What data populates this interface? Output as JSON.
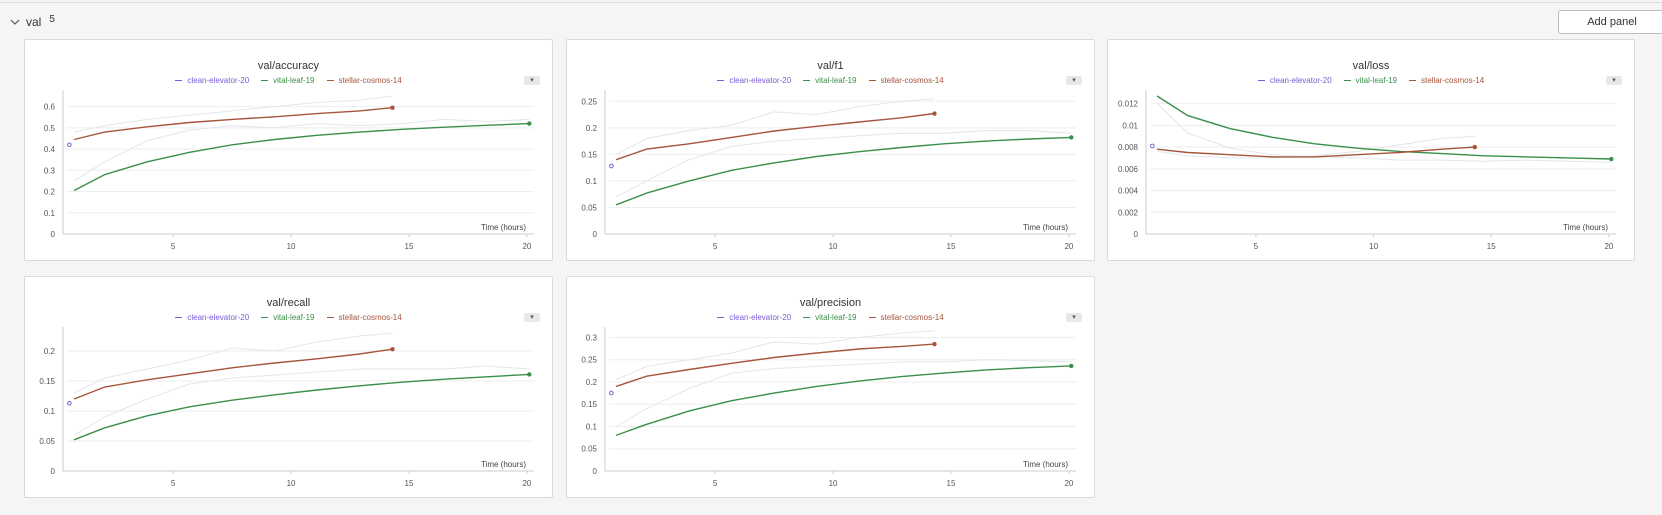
{
  "section": {
    "title": "val",
    "count": "5",
    "add_panel_label": "Add panel"
  },
  "colors": {
    "clean-elevator-20": "#7b5cd6",
    "vital-leaf-19": "#3a8f4a",
    "stellar-cosmos-14": "#a6553a",
    "smoothed-raw": "#e3e6e8",
    "grid": "#eeeeee",
    "axis": "#cccccc"
  },
  "legend": [
    "clean-elevator-20",
    "vital-leaf-19",
    "stellar-cosmos-14"
  ],
  "chart_data": [
    {
      "type": "line",
      "title": "val/accuracy",
      "xlabel": "Time (hours)",
      "ylabel": "",
      "xlim": [
        0.5,
        20.3
      ],
      "ylim": [
        0,
        0.65
      ],
      "xticks": [
        5,
        10,
        15,
        20
      ],
      "xtick_labels": [
        "5",
        "10",
        "15",
        "20"
      ],
      "yticks": [
        0,
        0.1,
        0.2,
        0.3,
        0.4,
        0.5,
        0.6
      ],
      "ytick_labels": [
        "0",
        "0.1",
        "0.2",
        "0.3",
        "0.4",
        "0.5",
        "0.6"
      ],
      "grid": true,
      "series": [
        {
          "name": "clean-elevator-20",
          "x": [
            0.6
          ],
          "y": [
            0.42
          ],
          "raw": false
        },
        {
          "name": "vital-leaf-19",
          "x": [
            0.8,
            2.1,
            3.9,
            5.7,
            7.5,
            9.3,
            11.1,
            12.9,
            14.7,
            16.5,
            18.3,
            20.1
          ],
          "y": [
            0.205,
            0.28,
            0.34,
            0.385,
            0.42,
            0.445,
            0.465,
            0.48,
            0.493,
            0.503,
            0.512,
            0.52
          ]
        },
        {
          "name": "stellar-cosmos-14",
          "x": [
            0.8,
            2.1,
            3.9,
            5.7,
            7.5,
            9.3,
            11.1,
            12.9,
            14.3
          ],
          "y": [
            0.445,
            0.48,
            0.505,
            0.525,
            0.54,
            0.552,
            0.567,
            0.58,
            0.595
          ]
        }
      ],
      "raw": [
        {
          "name": "vital-leaf-19-raw",
          "x": [
            0.8,
            2.1,
            3.9,
            5.7,
            7.5,
            9.3,
            11.1,
            12.9,
            14.7,
            16.5,
            18.3,
            20.1
          ],
          "y": [
            0.25,
            0.34,
            0.44,
            0.49,
            0.51,
            0.5,
            0.52,
            0.51,
            0.52,
            0.54,
            0.53,
            0.54
          ]
        },
        {
          "name": "stellar-cosmos-14-raw",
          "x": [
            0.8,
            2.1,
            3.9,
            5.7,
            7.5,
            9.3,
            11.1,
            12.9,
            14.3
          ],
          "y": [
            0.48,
            0.51,
            0.54,
            0.56,
            0.58,
            0.6,
            0.62,
            0.63,
            0.65
          ]
        }
      ]
    },
    {
      "type": "line",
      "title": "val/f1",
      "xlabel": "Time (hours)",
      "ylabel": "",
      "xlim": [
        0.5,
        20.3
      ],
      "ylim": [
        0,
        0.26
      ],
      "xticks": [
        5,
        10,
        15,
        20
      ],
      "xtick_labels": [
        "5",
        "10",
        "15",
        "20"
      ],
      "yticks": [
        0,
        0.05,
        0.1,
        0.15,
        0.2,
        0.25
      ],
      "ytick_labels": [
        "0",
        "0.05",
        "0.1",
        "0.15",
        "0.2",
        "0.25"
      ],
      "grid": true,
      "series": [
        {
          "name": "clean-elevator-20",
          "x": [
            0.6
          ],
          "y": [
            0.128
          ],
          "raw": false
        },
        {
          "name": "vital-leaf-19",
          "x": [
            0.8,
            2.1,
            3.9,
            5.7,
            7.5,
            9.3,
            11.1,
            12.9,
            14.7,
            16.5,
            18.3,
            20.1
          ],
          "y": [
            0.055,
            0.077,
            0.1,
            0.12,
            0.134,
            0.146,
            0.155,
            0.163,
            0.17,
            0.175,
            0.179,
            0.182
          ]
        },
        {
          "name": "stellar-cosmos-14",
          "x": [
            0.8,
            2.1,
            3.9,
            5.7,
            7.5,
            9.3,
            11.1,
            12.9,
            14.3
          ],
          "y": [
            0.14,
            0.16,
            0.17,
            0.182,
            0.194,
            0.203,
            0.211,
            0.219,
            0.227
          ]
        }
      ],
      "raw": [
        {
          "name": "vital-leaf-19-raw",
          "x": [
            0.8,
            2.1,
            3.9,
            5.7,
            7.5,
            9.3,
            11.1,
            12.9,
            14.7,
            16.5,
            18.3,
            20.1
          ],
          "y": [
            0.07,
            0.1,
            0.14,
            0.165,
            0.175,
            0.18,
            0.185,
            0.19,
            0.19,
            0.195,
            0.195,
            0.19
          ]
        },
        {
          "name": "stellar-cosmos-14-raw",
          "x": [
            0.8,
            2.1,
            3.9,
            5.7,
            7.5,
            9.3,
            11.1,
            12.9,
            14.3
          ],
          "y": [
            0.15,
            0.18,
            0.195,
            0.205,
            0.23,
            0.225,
            0.24,
            0.25,
            0.255
          ]
        }
      ]
    },
    {
      "type": "line",
      "title": "val/loss",
      "xlabel": "Time (hours)",
      "ylabel": "",
      "xlim": [
        0.5,
        20.3
      ],
      "ylim": [
        0,
        0.0127
      ],
      "xticks": [
        5,
        10,
        15,
        20
      ],
      "xtick_labels": [
        "5",
        "10",
        "15",
        "20"
      ],
      "yticks": [
        0,
        0.002,
        0.004,
        0.006,
        0.008,
        0.01,
        0.012
      ],
      "ytick_labels": [
        "0",
        "0.002",
        "0.004",
        "0.006",
        "0.008",
        "0.01",
        "0.012"
      ],
      "grid": true,
      "series": [
        {
          "name": "clean-elevator-20",
          "x": [
            0.6
          ],
          "y": [
            0.0081
          ],
          "raw": false
        },
        {
          "name": "vital-leaf-19",
          "x": [
            0.8,
            2.1,
            3.9,
            5.7,
            7.5,
            9.3,
            11.1,
            12.9,
            14.7,
            16.5,
            18.3,
            20.1
          ],
          "y": [
            0.0127,
            0.0109,
            0.0097,
            0.0089,
            0.0083,
            0.0079,
            0.0076,
            0.0074,
            0.0072,
            0.0071,
            0.007,
            0.0069
          ]
        },
        {
          "name": "stellar-cosmos-14",
          "x": [
            0.8,
            2.1,
            3.9,
            5.7,
            7.5,
            9.3,
            11.1,
            12.9,
            14.3
          ],
          "y": [
            0.0078,
            0.0075,
            0.0073,
            0.0071,
            0.0071,
            0.0073,
            0.0075,
            0.0078,
            0.008
          ]
        }
      ],
      "raw": [
        {
          "name": "vital-leaf-19-raw",
          "x": [
            0.8,
            2.1,
            3.9,
            5.7,
            7.5,
            9.3,
            11.1,
            12.9,
            14.7,
            16.5,
            18.3,
            20.1
          ],
          "y": [
            0.012,
            0.0093,
            0.0079,
            0.0073,
            0.0071,
            0.007,
            0.0068,
            0.0068,
            0.0067,
            0.0068,
            0.0067,
            0.0066
          ]
        },
        {
          "name": "stellar-cosmos-14-raw",
          "x": [
            0.8,
            2.1,
            3.9,
            5.7,
            7.5,
            9.3,
            11.1,
            12.9,
            14.3
          ],
          "y": [
            0.0076,
            0.0072,
            0.007,
            0.007,
            0.0072,
            0.0076,
            0.0082,
            0.0088,
            0.009
          ]
        }
      ]
    },
    {
      "type": "line",
      "title": "val/recall",
      "xlabel": "Time (hours)",
      "ylabel": "",
      "xlim": [
        0.5,
        20.3
      ],
      "ylim": [
        0,
        0.23
      ],
      "xticks": [
        5,
        10,
        15,
        20
      ],
      "xtick_labels": [
        "5",
        "10",
        "15",
        "20"
      ],
      "yticks": [
        0,
        0.05,
        0.1,
        0.15,
        0.2
      ],
      "ytick_labels": [
        "0",
        "0.05",
        "0.1",
        "0.15",
        "0.2"
      ],
      "grid": true,
      "series": [
        {
          "name": "clean-elevator-20",
          "x": [
            0.6
          ],
          "y": [
            0.113
          ],
          "raw": false
        },
        {
          "name": "vital-leaf-19",
          "x": [
            0.8,
            2.1,
            3.9,
            5.7,
            7.5,
            9.3,
            11.1,
            12.9,
            14.7,
            16.5,
            18.3,
            20.1
          ],
          "y": [
            0.052,
            0.072,
            0.092,
            0.107,
            0.118,
            0.127,
            0.135,
            0.142,
            0.148,
            0.153,
            0.157,
            0.161
          ]
        },
        {
          "name": "stellar-cosmos-14",
          "x": [
            0.8,
            2.1,
            3.9,
            5.7,
            7.5,
            9.3,
            11.1,
            12.9,
            14.3
          ],
          "y": [
            0.12,
            0.14,
            0.152,
            0.162,
            0.172,
            0.18,
            0.187,
            0.195,
            0.203
          ]
        }
      ],
      "raw": [
        {
          "name": "vital-leaf-19-raw",
          "x": [
            0.8,
            2.1,
            3.9,
            5.7,
            7.5,
            9.3,
            11.1,
            12.9,
            14.7,
            16.5,
            18.3,
            20.1
          ],
          "y": [
            0.06,
            0.09,
            0.12,
            0.145,
            0.155,
            0.16,
            0.165,
            0.17,
            0.17,
            0.17,
            0.175,
            0.17
          ]
        },
        {
          "name": "stellar-cosmos-14-raw",
          "x": [
            0.8,
            2.1,
            3.9,
            5.7,
            7.5,
            9.3,
            11.1,
            12.9,
            14.3
          ],
          "y": [
            0.13,
            0.155,
            0.17,
            0.185,
            0.205,
            0.2,
            0.215,
            0.225,
            0.23
          ]
        }
      ]
    },
    {
      "type": "line",
      "title": "val/precision",
      "xlabel": "Time (hours)",
      "ylabel": "",
      "xlim": [
        0.5,
        20.3
      ],
      "ylim": [
        0,
        0.31
      ],
      "xticks": [
        5,
        10,
        15,
        20
      ],
      "xtick_labels": [
        "5",
        "10",
        "15",
        "20"
      ],
      "yticks": [
        0,
        0.05,
        0.1,
        0.15,
        0.2,
        0.25,
        0.3
      ],
      "ytick_labels": [
        "0",
        "0.05",
        "0.1",
        "0.15",
        "0.2",
        "0.25",
        "0.3"
      ],
      "grid": true,
      "series": [
        {
          "name": "clean-elevator-20",
          "x": [
            0.6
          ],
          "y": [
            0.175
          ],
          "raw": false
        },
        {
          "name": "vital-leaf-19",
          "x": [
            0.8,
            2.1,
            3.9,
            5.7,
            7.5,
            9.3,
            11.1,
            12.9,
            14.7,
            16.5,
            18.3,
            20.1
          ],
          "y": [
            0.08,
            0.105,
            0.135,
            0.158,
            0.175,
            0.19,
            0.202,
            0.212,
            0.22,
            0.227,
            0.232,
            0.236
          ]
        },
        {
          "name": "stellar-cosmos-14",
          "x": [
            0.8,
            2.1,
            3.9,
            5.7,
            7.5,
            9.3,
            11.1,
            12.9,
            14.3
          ],
          "y": [
            0.19,
            0.213,
            0.228,
            0.242,
            0.255,
            0.265,
            0.274,
            0.28,
            0.285
          ]
        }
      ],
      "raw": [
        {
          "name": "vital-leaf-19-raw",
          "x": [
            0.8,
            2.1,
            3.9,
            5.7,
            7.5,
            9.3,
            11.1,
            12.9,
            14.7,
            16.5,
            18.3,
            20.1
          ],
          "y": [
            0.1,
            0.14,
            0.185,
            0.22,
            0.23,
            0.235,
            0.24,
            0.245,
            0.245,
            0.25,
            0.248,
            0.245
          ]
        },
        {
          "name": "stellar-cosmos-14-raw",
          "x": [
            0.8,
            2.1,
            3.9,
            5.7,
            7.5,
            9.3,
            11.1,
            12.9,
            14.3
          ],
          "y": [
            0.205,
            0.235,
            0.25,
            0.265,
            0.29,
            0.285,
            0.3,
            0.31,
            0.315
          ]
        }
      ]
    }
  ]
}
